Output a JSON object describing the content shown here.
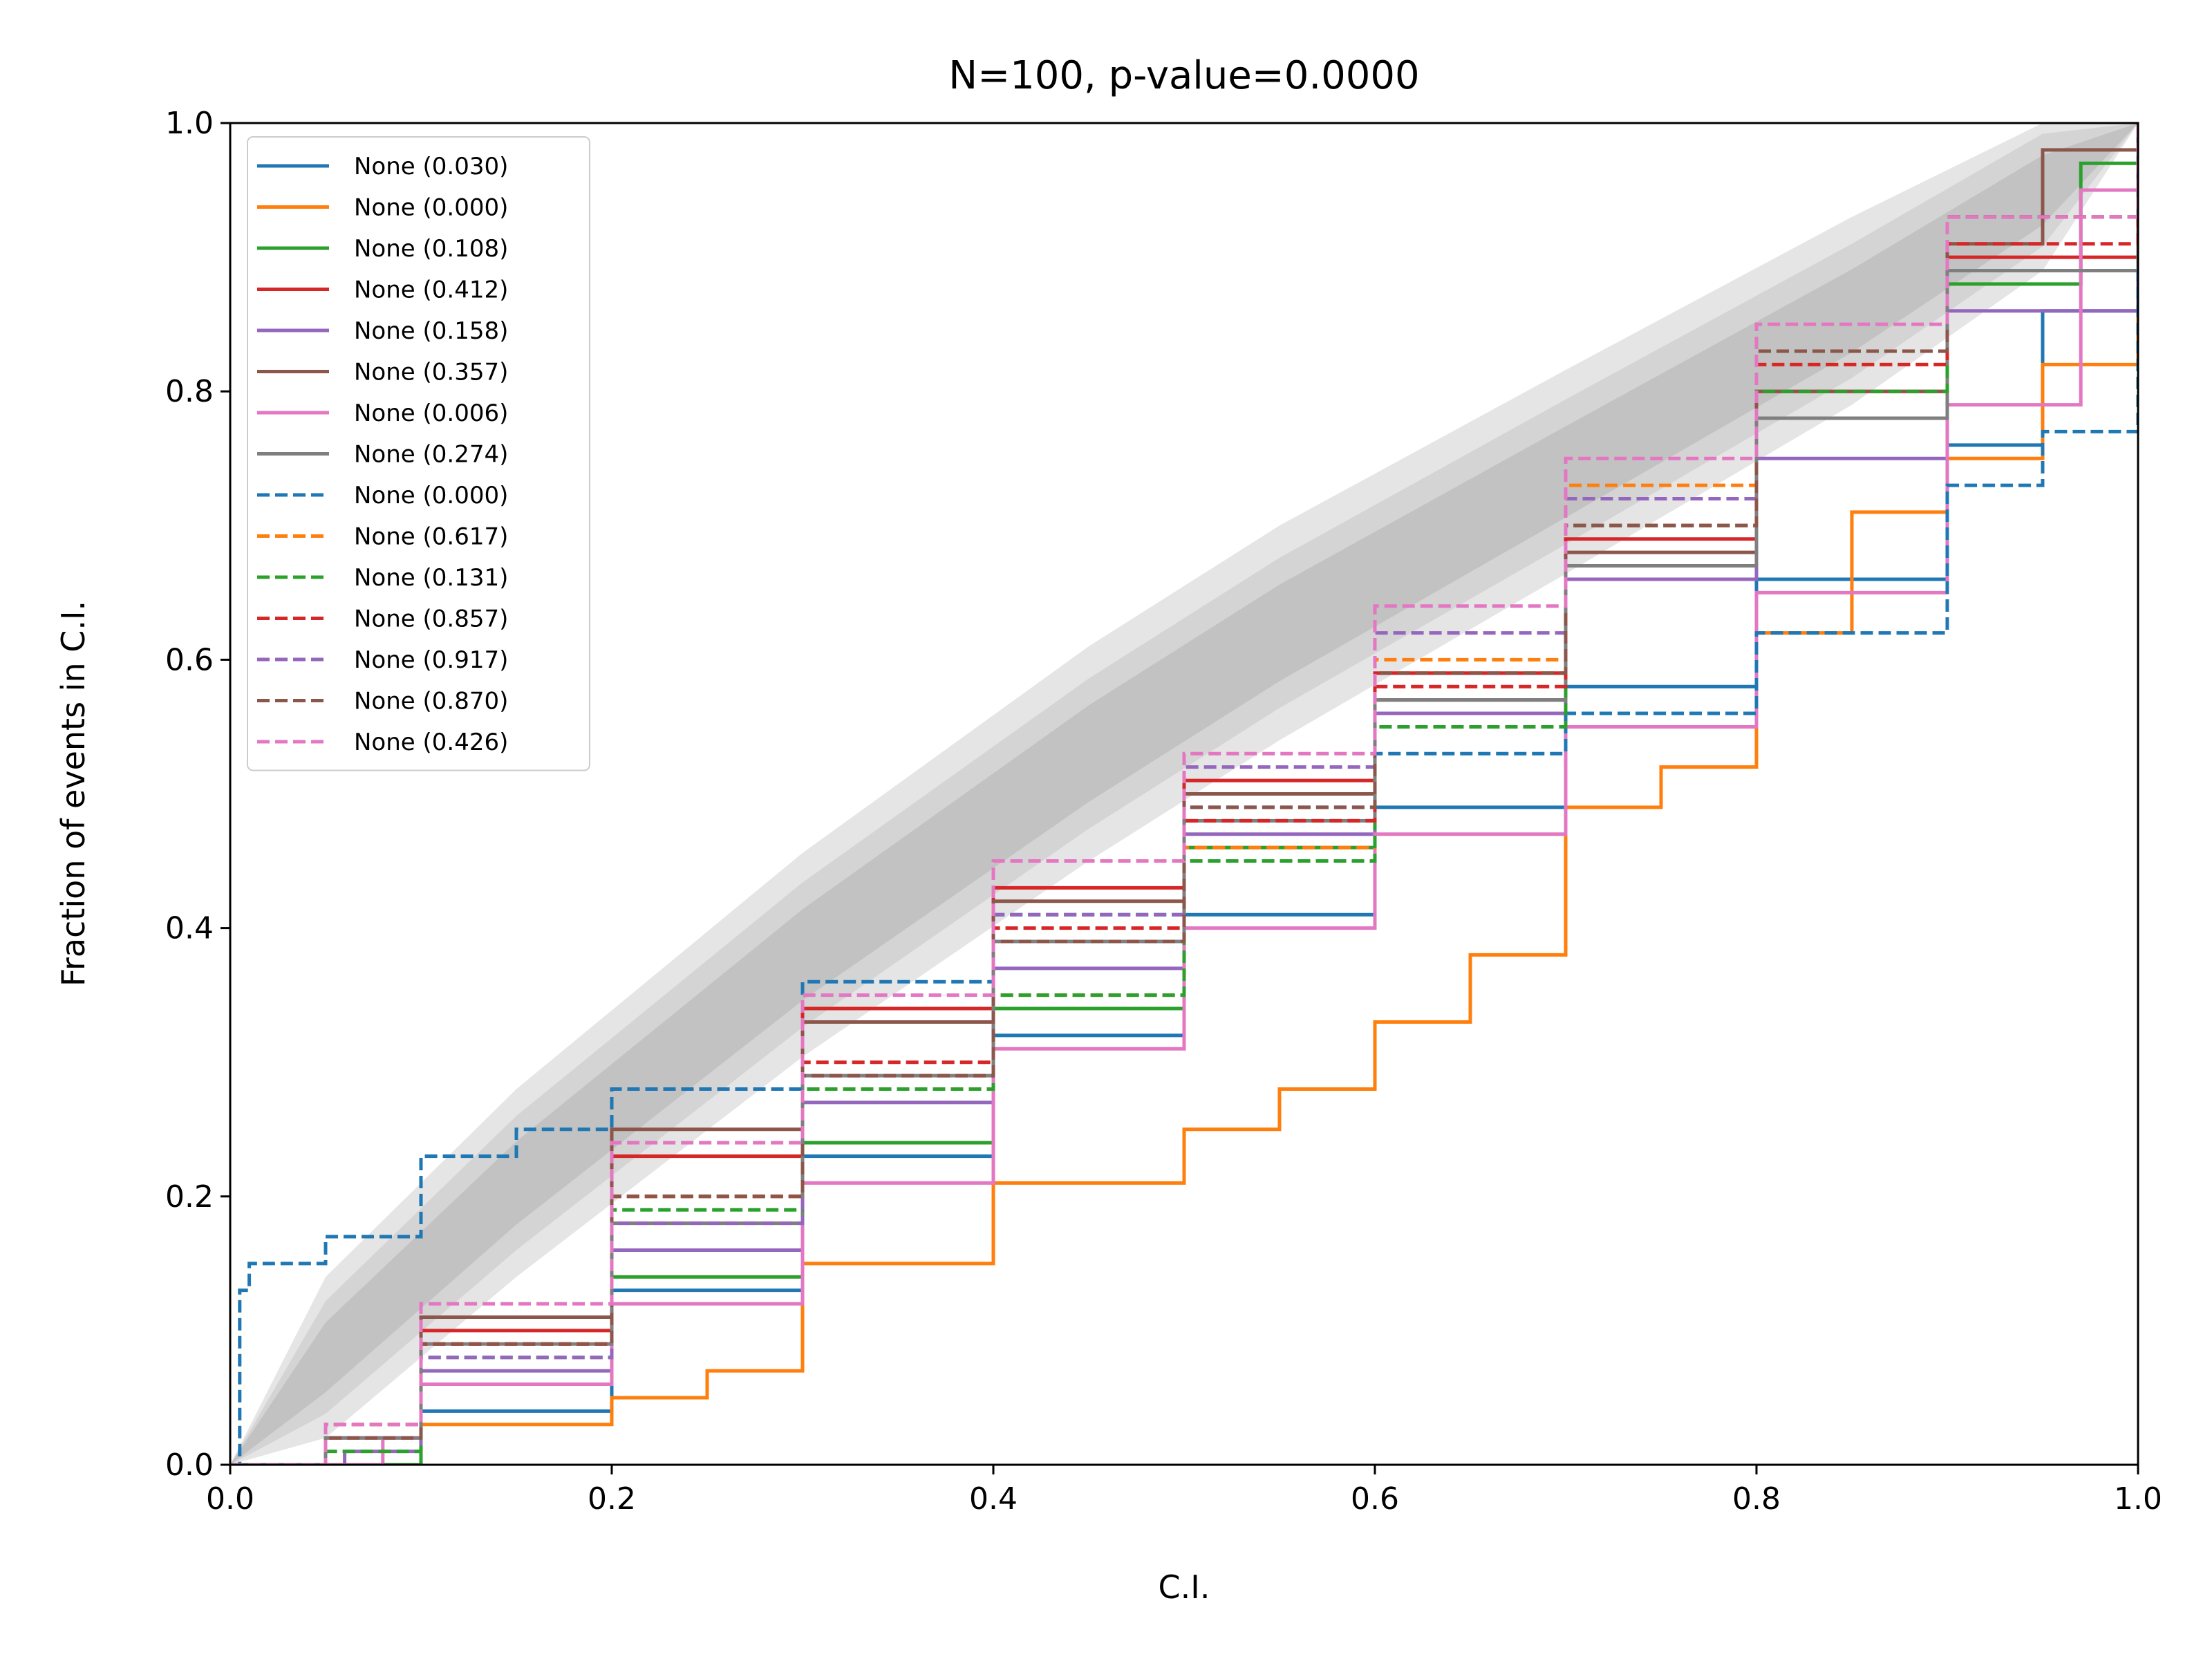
{
  "chart_data": {
    "type": "line",
    "title": "N=100, p-value=0.0000",
    "xlabel": "C.I.",
    "ylabel": "Fraction of events in C.I.",
    "xlim": [
      0.0,
      1.0
    ],
    "ylim": [
      0.0,
      1.0
    ],
    "xticks": [
      "0.0",
      "0.2",
      "0.4",
      "0.6",
      "0.8",
      "1.0"
    ],
    "yticks": [
      "0.0",
      "0.2",
      "0.4",
      "0.6",
      "0.8",
      "1.0"
    ],
    "grid": false,
    "legend_position": "upper-left",
    "bands": [
      {
        "level": "outer",
        "color": "#e5e5e5",
        "halfwidth": [
          0,
          0.06,
          0.07,
          0.076,
          0.08,
          0.08,
          0.076,
          0.07,
          0.06,
          0
        ]
      },
      {
        "level": "middle",
        "color": "#d4d4d4",
        "halfwidth": [
          0,
          0.042,
          0.05,
          0.054,
          0.056,
          0.056,
          0.054,
          0.05,
          0.042,
          0
        ]
      },
      {
        "level": "inner",
        "color": "#c2c2c2",
        "halfwidth": [
          0,
          0.026,
          0.031,
          0.034,
          0.036,
          0.036,
          0.034,
          0.031,
          0.026,
          0
        ]
      }
    ],
    "band_x": [
      0,
      0.05,
      0.15,
      0.3,
      0.45,
      0.55,
      0.7,
      0.85,
      0.95,
      1.0
    ],
    "band_center_y": [
      0,
      0.08,
      0.21,
      0.38,
      0.53,
      0.62,
      0.74,
      0.86,
      0.95,
      1.0
    ],
    "series": [
      {
        "name": "None (0.030)",
        "color": "#1f77b4",
        "dash": "solid",
        "x": [
          0.0,
          0.05,
          0.1,
          0.2,
          0.3,
          0.4,
          0.5,
          0.6,
          0.7,
          0.8,
          0.9,
          0.95,
          1.0
        ],
        "y": [
          0.0,
          0.0,
          0.04,
          0.13,
          0.23,
          0.32,
          0.41,
          0.49,
          0.58,
          0.66,
          0.76,
          0.86,
          1.0
        ]
      },
      {
        "name": "None (0.000)",
        "color": "#ff7f0e",
        "dash": "solid",
        "x": [
          0.0,
          0.1,
          0.2,
          0.25,
          0.3,
          0.4,
          0.5,
          0.55,
          0.6,
          0.65,
          0.7,
          0.75,
          0.8,
          0.85,
          0.9,
          0.95,
          1.0
        ],
        "y": [
          0.0,
          0.03,
          0.05,
          0.07,
          0.15,
          0.21,
          0.25,
          0.28,
          0.33,
          0.38,
          0.49,
          0.52,
          0.62,
          0.71,
          0.75,
          0.82,
          1.0
        ]
      },
      {
        "name": "None (0.108)",
        "color": "#2ca02c",
        "dash": "solid",
        "x": [
          0.0,
          0.08,
          0.1,
          0.2,
          0.3,
          0.4,
          0.5,
          0.6,
          0.7,
          0.8,
          0.9,
          0.97,
          1.0
        ],
        "y": [
          0.0,
          0.0,
          0.06,
          0.14,
          0.24,
          0.34,
          0.46,
          0.56,
          0.67,
          0.78,
          0.88,
          0.97,
          1.0
        ]
      },
      {
        "name": "None (0.412)",
        "color": "#d62728",
        "dash": "solid",
        "x": [
          0.0,
          0.05,
          0.1,
          0.2,
          0.3,
          0.4,
          0.5,
          0.6,
          0.7,
          0.8,
          0.9,
          1.0
        ],
        "y": [
          0.0,
          0.02,
          0.1,
          0.23,
          0.34,
          0.43,
          0.51,
          0.59,
          0.69,
          0.8,
          0.9,
          1.0
        ]
      },
      {
        "name": "None (0.158)",
        "color": "#9467bd",
        "dash": "solid",
        "x": [
          0.0,
          0.06,
          0.1,
          0.2,
          0.3,
          0.4,
          0.5,
          0.6,
          0.7,
          0.8,
          0.9,
          1.0
        ],
        "y": [
          0.0,
          0.01,
          0.07,
          0.16,
          0.27,
          0.37,
          0.47,
          0.56,
          0.66,
          0.75,
          0.86,
          1.0
        ]
      },
      {
        "name": "None (0.357)",
        "color": "#8c564b",
        "dash": "solid",
        "x": [
          0.0,
          0.05,
          0.1,
          0.2,
          0.3,
          0.4,
          0.5,
          0.6,
          0.7,
          0.8,
          0.9,
          0.95,
          1.0
        ],
        "y": [
          0.0,
          0.02,
          0.11,
          0.25,
          0.33,
          0.42,
          0.5,
          0.57,
          0.68,
          0.8,
          0.91,
          0.98,
          1.0
        ]
      },
      {
        "name": "None (0.006)",
        "color": "#e377c2",
        "dash": "solid",
        "x": [
          0.0,
          0.08,
          0.1,
          0.2,
          0.3,
          0.4,
          0.5,
          0.6,
          0.7,
          0.8,
          0.9,
          0.97,
          1.0
        ],
        "y": [
          0.0,
          0.02,
          0.06,
          0.12,
          0.21,
          0.31,
          0.4,
          0.47,
          0.55,
          0.65,
          0.79,
          0.95,
          1.0
        ]
      },
      {
        "name": "None (0.274)",
        "color": "#7f7f7f",
        "dash": "solid",
        "x": [
          0.0,
          0.05,
          0.1,
          0.2,
          0.3,
          0.4,
          0.5,
          0.6,
          0.7,
          0.8,
          0.9,
          1.0
        ],
        "y": [
          0.0,
          0.02,
          0.09,
          0.18,
          0.29,
          0.39,
          0.48,
          0.57,
          0.67,
          0.78,
          0.89,
          1.0
        ]
      },
      {
        "name": "None (0.000)",
        "color": "#1f77b4",
        "dash": "dashed",
        "x": [
          0.0,
          0.005,
          0.01,
          0.05,
          0.1,
          0.15,
          0.2,
          0.3,
          0.4,
          0.5,
          0.6,
          0.7,
          0.8,
          0.9,
          0.95,
          1.0
        ],
        "y": [
          0.0,
          0.13,
          0.15,
          0.17,
          0.23,
          0.25,
          0.28,
          0.36,
          0.41,
          0.49,
          0.53,
          0.56,
          0.62,
          0.73,
          0.77,
          0.89
        ]
      },
      {
        "name": "None (0.617)",
        "color": "#ff7f0e",
        "dash": "dashed",
        "x": [
          0.0,
          0.05,
          0.1,
          0.2,
          0.3,
          0.4,
          0.5,
          0.6,
          0.7,
          0.8,
          0.9,
          1.0
        ],
        "y": [
          0.0,
          0.02,
          0.09,
          0.2,
          0.29,
          0.35,
          0.46,
          0.6,
          0.73,
          0.82,
          0.93,
          1.0
        ]
      },
      {
        "name": "None (0.131)",
        "color": "#2ca02c",
        "dash": "dashed",
        "x": [
          0.0,
          0.05,
          0.1,
          0.2,
          0.3,
          0.4,
          0.5,
          0.6,
          0.7,
          0.8,
          0.9,
          1.0
        ],
        "y": [
          0.0,
          0.01,
          0.08,
          0.19,
          0.28,
          0.35,
          0.45,
          0.55,
          0.7,
          0.8,
          0.93,
          1.0
        ]
      },
      {
        "name": "None (0.857)",
        "color": "#d62728",
        "dash": "dashed",
        "x": [
          0.0,
          0.05,
          0.1,
          0.2,
          0.3,
          0.4,
          0.5,
          0.6,
          0.7,
          0.8,
          0.9,
          1.0
        ],
        "y": [
          0.0,
          0.03,
          0.09,
          0.2,
          0.3,
          0.4,
          0.48,
          0.58,
          0.7,
          0.82,
          0.91,
          1.0
        ]
      },
      {
        "name": "None (0.917)",
        "color": "#9467bd",
        "dash": "dashed",
        "x": [
          0.0,
          0.05,
          0.1,
          0.2,
          0.3,
          0.4,
          0.5,
          0.6,
          0.7,
          0.8,
          0.9,
          1.0
        ],
        "y": [
          0.0,
          0.02,
          0.08,
          0.18,
          0.29,
          0.41,
          0.52,
          0.62,
          0.72,
          0.83,
          0.93,
          1.0
        ]
      },
      {
        "name": "None (0.870)",
        "color": "#8c564b",
        "dash": "dashed",
        "x": [
          0.0,
          0.05,
          0.1,
          0.2,
          0.3,
          0.4,
          0.5,
          0.6,
          0.7,
          0.8,
          0.9,
          1.0
        ],
        "y": [
          0.0,
          0.02,
          0.09,
          0.2,
          0.29,
          0.39,
          0.49,
          0.59,
          0.7,
          0.83,
          0.93,
          1.0
        ]
      },
      {
        "name": "None (0.426)",
        "color": "#e377c2",
        "dash": "dashed",
        "x": [
          0.0,
          0.05,
          0.1,
          0.2,
          0.3,
          0.4,
          0.5,
          0.6,
          0.7,
          0.8,
          0.9,
          1.0
        ],
        "y": [
          0.0,
          0.03,
          0.12,
          0.24,
          0.35,
          0.45,
          0.53,
          0.64,
          0.75,
          0.85,
          0.93,
          1.0
        ]
      }
    ]
  }
}
